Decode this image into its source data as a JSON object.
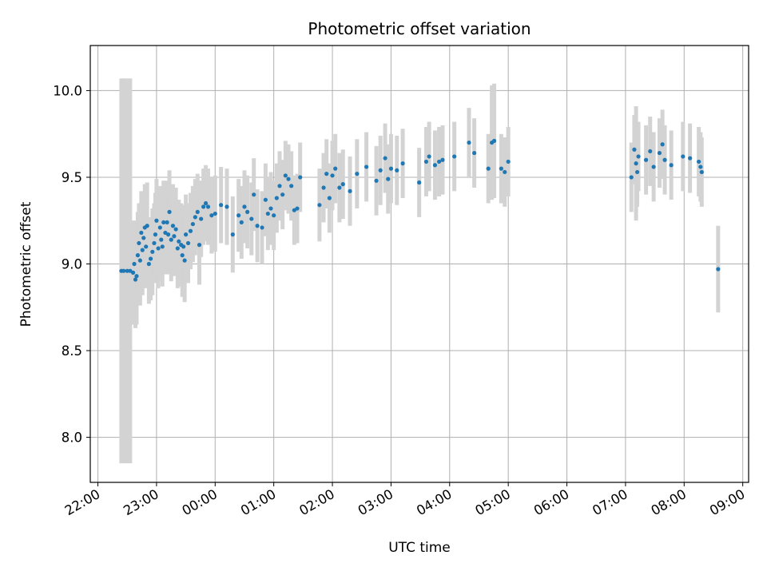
{
  "chart_data": {
    "type": "scatter",
    "title": "Photometric offset variation",
    "xlabel": "UTC time",
    "ylabel": "Photometric offset",
    "x_tick_labels": [
      "22:00",
      "23:00",
      "00:00",
      "01:00",
      "02:00",
      "03:00",
      "04:00",
      "05:00",
      "06:00",
      "07:00",
      "08:00",
      "09:00"
    ],
    "x_ticks_hours": [
      0,
      1,
      2,
      3,
      4,
      5,
      6,
      7,
      8,
      9,
      10,
      11
    ],
    "y_ticks": [
      8.0,
      8.5,
      9.0,
      9.5,
      10.0
    ],
    "y_tick_labels": [
      "8.0",
      "8.5",
      "9.0",
      "9.5",
      "10.0"
    ],
    "x_range_hours": [
      -0.13,
      11.1
    ],
    "ylim": [
      7.74,
      10.26
    ],
    "grid": true,
    "point_color": "#1f77b4",
    "errorbar_color": "#d3d3d3",
    "x_unit": "hours after 22:00 UTC",
    "points": [
      [
        0.4,
        8.96,
        1.11
      ],
      [
        0.44,
        8.96,
        1.11
      ],
      [
        0.5,
        8.96,
        1.11
      ],
      [
        0.55,
        8.96,
        1.11
      ],
      [
        0.6,
        8.95,
        0.3
      ],
      [
        0.62,
        9.0,
        0.25
      ],
      [
        0.64,
        8.91,
        0.28
      ],
      [
        0.66,
        8.93,
        0.28
      ],
      [
        0.68,
        9.05,
        0.25
      ],
      [
        0.7,
        9.12,
        0.23
      ],
      [
        0.72,
        9.02,
        0.26
      ],
      [
        0.74,
        9.18,
        0.24
      ],
      [
        0.76,
        9.08,
        0.26
      ],
      [
        0.78,
        9.15,
        0.24
      ],
      [
        0.8,
        9.21,
        0.25
      ],
      [
        0.82,
        9.1,
        0.24
      ],
      [
        0.84,
        9.22,
        0.25
      ],
      [
        0.87,
        9.0,
        0.23
      ],
      [
        0.9,
        9.03,
        0.24
      ],
      [
        0.93,
        9.07,
        0.25
      ],
      [
        0.96,
        9.12,
        0.23
      ],
      [
        0.98,
        9.17,
        0.24
      ],
      [
        1.0,
        9.25,
        0.24
      ],
      [
        1.03,
        9.09,
        0.23
      ],
      [
        1.06,
        9.21,
        0.24
      ],
      [
        1.08,
        9.14,
        0.24
      ],
      [
        1.1,
        9.1,
        0.23
      ],
      [
        1.12,
        9.24,
        0.24
      ],
      [
        1.15,
        9.18,
        0.24
      ],
      [
        1.18,
        9.24,
        0.24
      ],
      [
        1.2,
        9.17,
        0.23
      ],
      [
        1.22,
        9.3,
        0.24
      ],
      [
        1.25,
        9.14,
        0.24
      ],
      [
        1.28,
        9.22,
        0.24
      ],
      [
        1.3,
        9.16,
        0.23
      ],
      [
        1.33,
        9.2,
        0.24
      ],
      [
        1.36,
        9.09,
        0.23
      ],
      [
        1.38,
        9.13,
        0.24
      ],
      [
        1.42,
        9.11,
        0.24
      ],
      [
        1.44,
        9.05,
        0.24
      ],
      [
        1.46,
        9.1,
        0.24
      ],
      [
        1.48,
        9.02,
        0.24
      ],
      [
        1.5,
        9.17,
        0.23
      ],
      [
        1.54,
        9.12,
        0.23
      ],
      [
        1.58,
        9.19,
        0.22
      ],
      [
        1.62,
        9.23,
        0.22
      ],
      [
        1.66,
        9.27,
        0.22
      ],
      [
        1.7,
        9.3,
        0.22
      ],
      [
        1.73,
        9.11,
        0.23
      ],
      [
        1.76,
        9.26,
        0.22
      ],
      [
        1.8,
        9.33,
        0.22
      ],
      [
        1.84,
        9.35,
        0.22
      ],
      [
        1.88,
        9.33,
        0.22
      ],
      [
        1.94,
        9.28,
        0.22
      ],
      [
        2.0,
        9.29,
        0.22
      ],
      [
        2.1,
        9.34,
        0.22
      ],
      [
        2.2,
        9.33,
        0.22
      ],
      [
        2.3,
        9.17,
        0.22
      ],
      [
        2.4,
        9.28,
        0.21
      ],
      [
        2.45,
        9.24,
        0.21
      ],
      [
        2.5,
        9.33,
        0.21
      ],
      [
        2.55,
        9.3,
        0.21
      ],
      [
        2.62,
        9.26,
        0.21
      ],
      [
        2.66,
        9.4,
        0.21
      ],
      [
        2.72,
        9.22,
        0.21
      ],
      [
        2.8,
        9.21,
        0.21
      ],
      [
        2.86,
        9.37,
        0.21
      ],
      [
        2.9,
        9.29,
        0.21
      ],
      [
        2.95,
        9.32,
        0.21
      ],
      [
        3.0,
        9.28,
        0.2
      ],
      [
        3.05,
        9.38,
        0.2
      ],
      [
        3.1,
        9.45,
        0.2
      ],
      [
        3.15,
        9.4,
        0.2
      ],
      [
        3.2,
        9.51,
        0.2
      ],
      [
        3.25,
        9.49,
        0.2
      ],
      [
        3.3,
        9.45,
        0.2
      ],
      [
        3.35,
        9.31,
        0.2
      ],
      [
        3.4,
        9.32,
        0.2
      ],
      [
        3.45,
        9.5,
        0.2
      ],
      [
        3.78,
        9.34,
        0.21
      ],
      [
        3.85,
        9.44,
        0.2
      ],
      [
        3.9,
        9.52,
        0.2
      ],
      [
        3.95,
        9.38,
        0.2
      ],
      [
        4.0,
        9.51,
        0.2
      ],
      [
        4.05,
        9.55,
        0.2
      ],
      [
        4.12,
        9.44,
        0.2
      ],
      [
        4.18,
        9.46,
        0.2
      ],
      [
        4.3,
        9.42,
        0.2
      ],
      [
        4.42,
        9.52,
        0.2
      ],
      [
        4.58,
        9.56,
        0.2
      ],
      [
        4.75,
        9.48,
        0.2
      ],
      [
        4.82,
        9.54,
        0.2
      ],
      [
        4.9,
        9.61,
        0.2
      ],
      [
        4.95,
        9.49,
        0.2
      ],
      [
        5.0,
        9.55,
        0.2
      ],
      [
        5.1,
        9.54,
        0.2
      ],
      [
        5.2,
        9.58,
        0.2
      ],
      [
        5.48,
        9.47,
        0.2
      ],
      [
        5.6,
        9.59,
        0.2
      ],
      [
        5.65,
        9.62,
        0.2
      ],
      [
        5.75,
        9.57,
        0.2
      ],
      [
        5.82,
        9.59,
        0.2
      ],
      [
        5.88,
        9.6,
        0.2
      ],
      [
        6.08,
        9.62,
        0.2
      ],
      [
        6.33,
        9.7,
        0.2
      ],
      [
        6.42,
        9.64,
        0.2
      ],
      [
        6.66,
        9.55,
        0.2
      ],
      [
        6.72,
        9.7,
        0.33
      ],
      [
        6.76,
        9.71,
        0.33
      ],
      [
        6.88,
        9.55,
        0.2
      ],
      [
        6.94,
        9.53,
        0.2
      ],
      [
        7.0,
        9.59,
        0.2
      ],
      [
        9.1,
        9.5,
        0.2
      ],
      [
        9.15,
        9.66,
        0.2
      ],
      [
        9.18,
        9.58,
        0.33
      ],
      [
        9.2,
        9.53,
        0.2
      ],
      [
        9.22,
        9.62,
        0.2
      ],
      [
        9.35,
        9.6,
        0.2
      ],
      [
        9.42,
        9.65,
        0.2
      ],
      [
        9.48,
        9.56,
        0.2
      ],
      [
        9.58,
        9.64,
        0.2
      ],
      [
        9.63,
        9.69,
        0.2
      ],
      [
        9.67,
        9.6,
        0.2
      ],
      [
        9.78,
        9.57,
        0.2
      ],
      [
        9.98,
        9.62,
        0.2
      ],
      [
        10.1,
        9.61,
        0.2
      ],
      [
        10.25,
        9.59,
        0.2
      ],
      [
        10.28,
        9.56,
        0.2
      ],
      [
        10.3,
        9.53,
        0.2
      ],
      [
        10.58,
        8.97,
        0.25
      ]
    ]
  }
}
